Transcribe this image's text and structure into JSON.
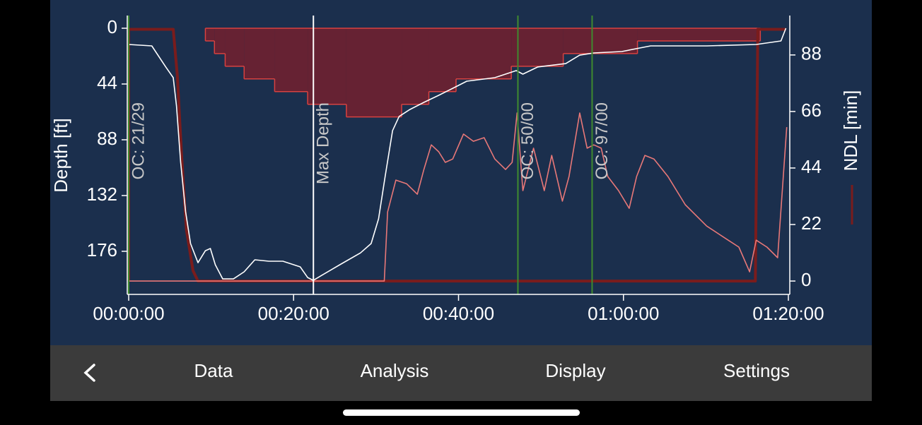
{
  "chart_data": {
    "type": "line",
    "xlim": [
      0,
      80
    ],
    "xticks": [
      {
        "value": 0,
        "label": "00:00:00"
      },
      {
        "value": 20,
        "label": "00:20:00"
      },
      {
        "value": 40,
        "label": "00:40:00"
      },
      {
        "value": 60,
        "label": "01:00:00"
      },
      {
        "value": 80,
        "label": "01:20:00"
      }
    ],
    "ylabel": "Depth [ft]",
    "ylim": [
      0,
      210
    ],
    "y_reversed": true,
    "yticks": [
      0,
      44,
      88,
      132,
      176
    ],
    "y2label": "NDL [min]",
    "y2lim": [
      -5.2,
      98.4
    ],
    "y2ticks": [
      0,
      22,
      44,
      66,
      88
    ],
    "series": [
      {
        "type": "step-area",
        "color": "#662233",
        "edge": "#d9413f",
        "x": [
          9.3,
          10.4,
          11.7,
          14.0,
          17.7,
          21.7,
          26.4,
          33.1,
          36.4,
          39.7,
          46.4,
          52.7,
          61.7,
          76.6
        ],
        "values": [
          10,
          20,
          30,
          40,
          50,
          60,
          70,
          60,
          50,
          40,
          30,
          20,
          10,
          0
        ]
      },
      {
        "type": "line",
        "color": "#7a1c1c",
        "axis": "y2",
        "width": 4,
        "x": [
          0,
          0,
          5.4,
          5.9,
          6.4,
          7.0,
          7.8,
          8.4,
          76.0,
          76.3,
          79.7
        ],
        "values": [
          0,
          98,
          98,
          80,
          50,
          20,
          4,
          0,
          0,
          98,
          98
        ]
      },
      {
        "type": "line",
        "color": "#e87878",
        "axis": "y2",
        "width": 1.6,
        "x": [
          0,
          31.0,
          31.4,
          32.4,
          33.7,
          35.0,
          35.8,
          36.7,
          37.6,
          38.4,
          39.3,
          40.6,
          41.8,
          43.1,
          44.4,
          45.7,
          46.5,
          47.1,
          47.8,
          49.1,
          50.4,
          51.3,
          52.6,
          53.4,
          54.7,
          55.6,
          56.4,
          57.3,
          58.1,
          59.4,
          60.7,
          61.6,
          62.6,
          63.7,
          65.4,
          67.5,
          70.1,
          72.7,
          74.0,
          75.3,
          76.1,
          77.4,
          78.7,
          79.8
        ],
        "values": [
          0,
          0,
          26.9,
          39.3,
          37.9,
          33.8,
          43.4,
          53.0,
          50.3,
          46.2,
          47.5,
          57.2,
          54.4,
          55.8,
          47.5,
          43.4,
          46.2,
          65.4,
          35.2,
          51.7,
          35.2,
          48.9,
          31.1,
          40.7,
          65.4,
          51.7,
          53.0,
          51.7,
          40.7,
          35.2,
          28.3,
          40.7,
          48.9,
          47.5,
          40.7,
          29.7,
          21.4,
          15.9,
          13.2,
          3.6,
          15.9,
          13.2,
          9.1,
          59.9
        ]
      },
      {
        "type": "line",
        "color": "#ffffff",
        "width": 1.6,
        "x": [
          0,
          2.8,
          4.5,
          5.4,
          5.8,
          6.3,
          6.9,
          7.5,
          8.4,
          9.3,
          9.9,
          10.5,
          11.4,
          12.7,
          14.0,
          15.3,
          17.0,
          18.7,
          20.8,
          21.7,
          22.4,
          23.4,
          25.6,
          28.1,
          29.4,
          30.3,
          31.1,
          32.0,
          32.8,
          34.1,
          35.8,
          37.6,
          39.3,
          41.0,
          44.4,
          47.0,
          47.8,
          49.6,
          53.0,
          54.7,
          56.4,
          59.8,
          63.3,
          70.1,
          76.1,
          79.1,
          79.7
        ],
        "values": [
          12.8,
          13.9,
          30.6,
          39.0,
          61.3,
          105.8,
          144.8,
          169.9,
          185.0,
          175.5,
          173.8,
          186.6,
          197.8,
          197.8,
          192.2,
          182.7,
          183.8,
          183.8,
          188.3,
          196.7,
          198.9,
          195.0,
          186.6,
          177.3,
          169.9,
          150.4,
          117.0,
          80.8,
          69.6,
          64.1,
          58.5,
          52.9,
          47.4,
          41.8,
          39.0,
          33.4,
          36.2,
          30.6,
          27.9,
          21.2,
          19.5,
          18.4,
          13.9,
          13.9,
          12.8,
          10.0,
          0
        ]
      }
    ],
    "markers": [
      {
        "x": 0,
        "label": "OC: 21/29",
        "color": "#3f8a2f"
      },
      {
        "x": 22.4,
        "label": "Max Depth",
        "color": "#ffffff"
      },
      {
        "x": 47.2,
        "label": "OC: 50/00",
        "color": "#3f8a2f"
      },
      {
        "x": 56.2,
        "label": "OC: 97/00",
        "color": "#3f8a2f"
      }
    ]
  },
  "nav": {
    "items": [
      "Data",
      "Analysis",
      "Display",
      "Settings"
    ]
  }
}
